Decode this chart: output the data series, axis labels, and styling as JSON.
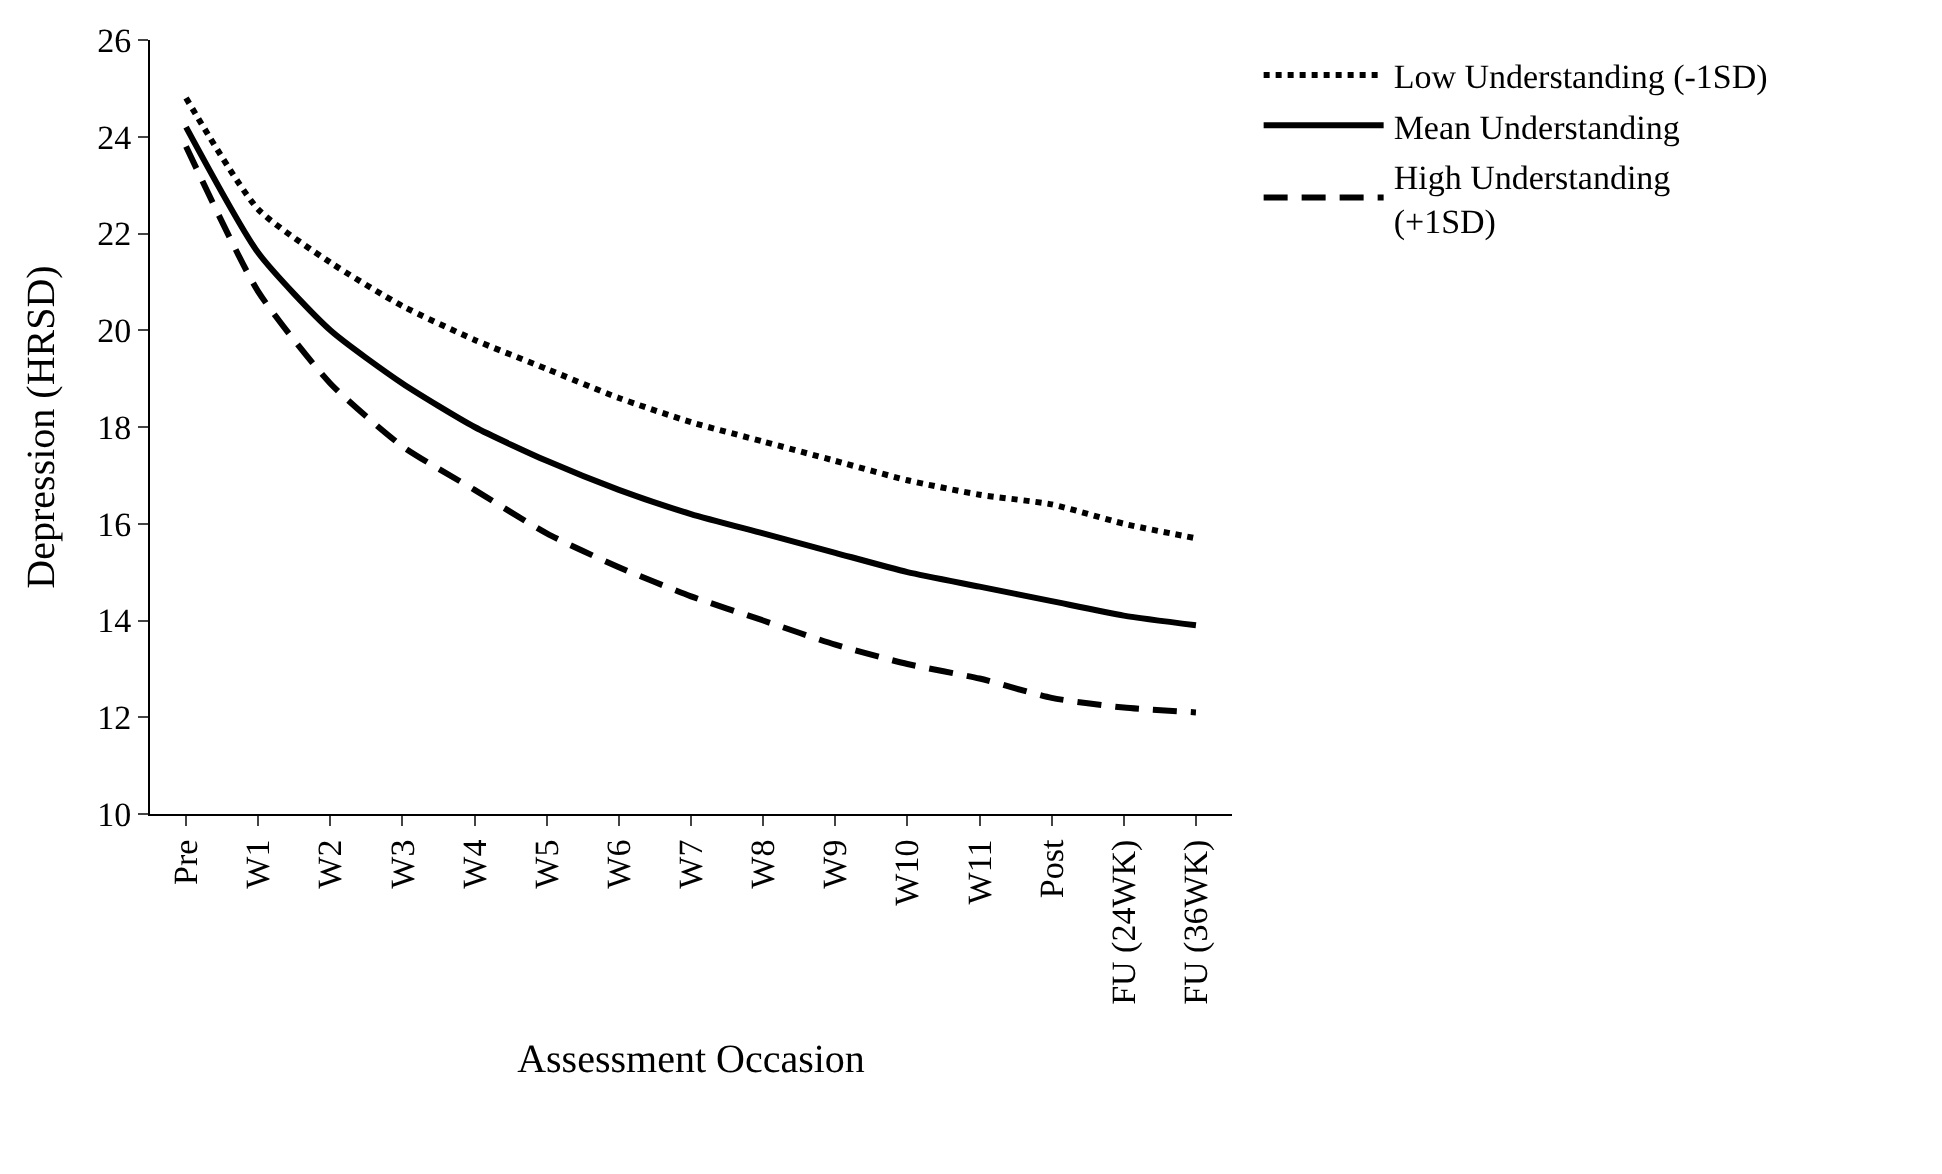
{
  "chart_data": {
    "type": "line",
    "xlabel": "Assessment Occasion",
    "ylabel": "Depression (HRSD)",
    "categories": [
      "Pre",
      "W1",
      "W2",
      "W3",
      "W4",
      "W5",
      "W6",
      "W7",
      "W8",
      "W9",
      "W10",
      "W11",
      "Post",
      "FU (24WK)",
      "FU (36WK)"
    ],
    "ylim": [
      10,
      26
    ],
    "yticks": [
      10,
      12,
      14,
      16,
      18,
      20,
      22,
      24,
      26
    ],
    "legend": "top right",
    "marker": "none",
    "series": [
      {
        "name": "Low Understanding (-1SD)",
        "color": "#000000",
        "line_style": "dotted",
        "values": [
          24.8,
          22.5,
          21.4,
          20.5,
          19.8,
          19.2,
          18.6,
          18.1,
          17.7,
          17.3,
          16.9,
          16.6,
          16.4,
          16.0,
          15.7
        ]
      },
      {
        "name": "Mean Understanding",
        "color": "#000000",
        "line_style": "solid",
        "values": [
          24.2,
          21.6,
          20.0,
          18.9,
          18.0,
          17.3,
          16.7,
          16.2,
          15.8,
          15.4,
          15.0,
          14.7,
          14.4,
          14.1,
          13.9
        ]
      },
      {
        "name": "High Understanding (+1SD)",
        "color": "#000000",
        "line_style": "dashed",
        "values": [
          23.8,
          20.8,
          18.9,
          17.6,
          16.7,
          15.8,
          15.1,
          14.5,
          14.0,
          13.5,
          13.1,
          12.8,
          12.4,
          12.2,
          12.1
        ]
      }
    ]
  }
}
